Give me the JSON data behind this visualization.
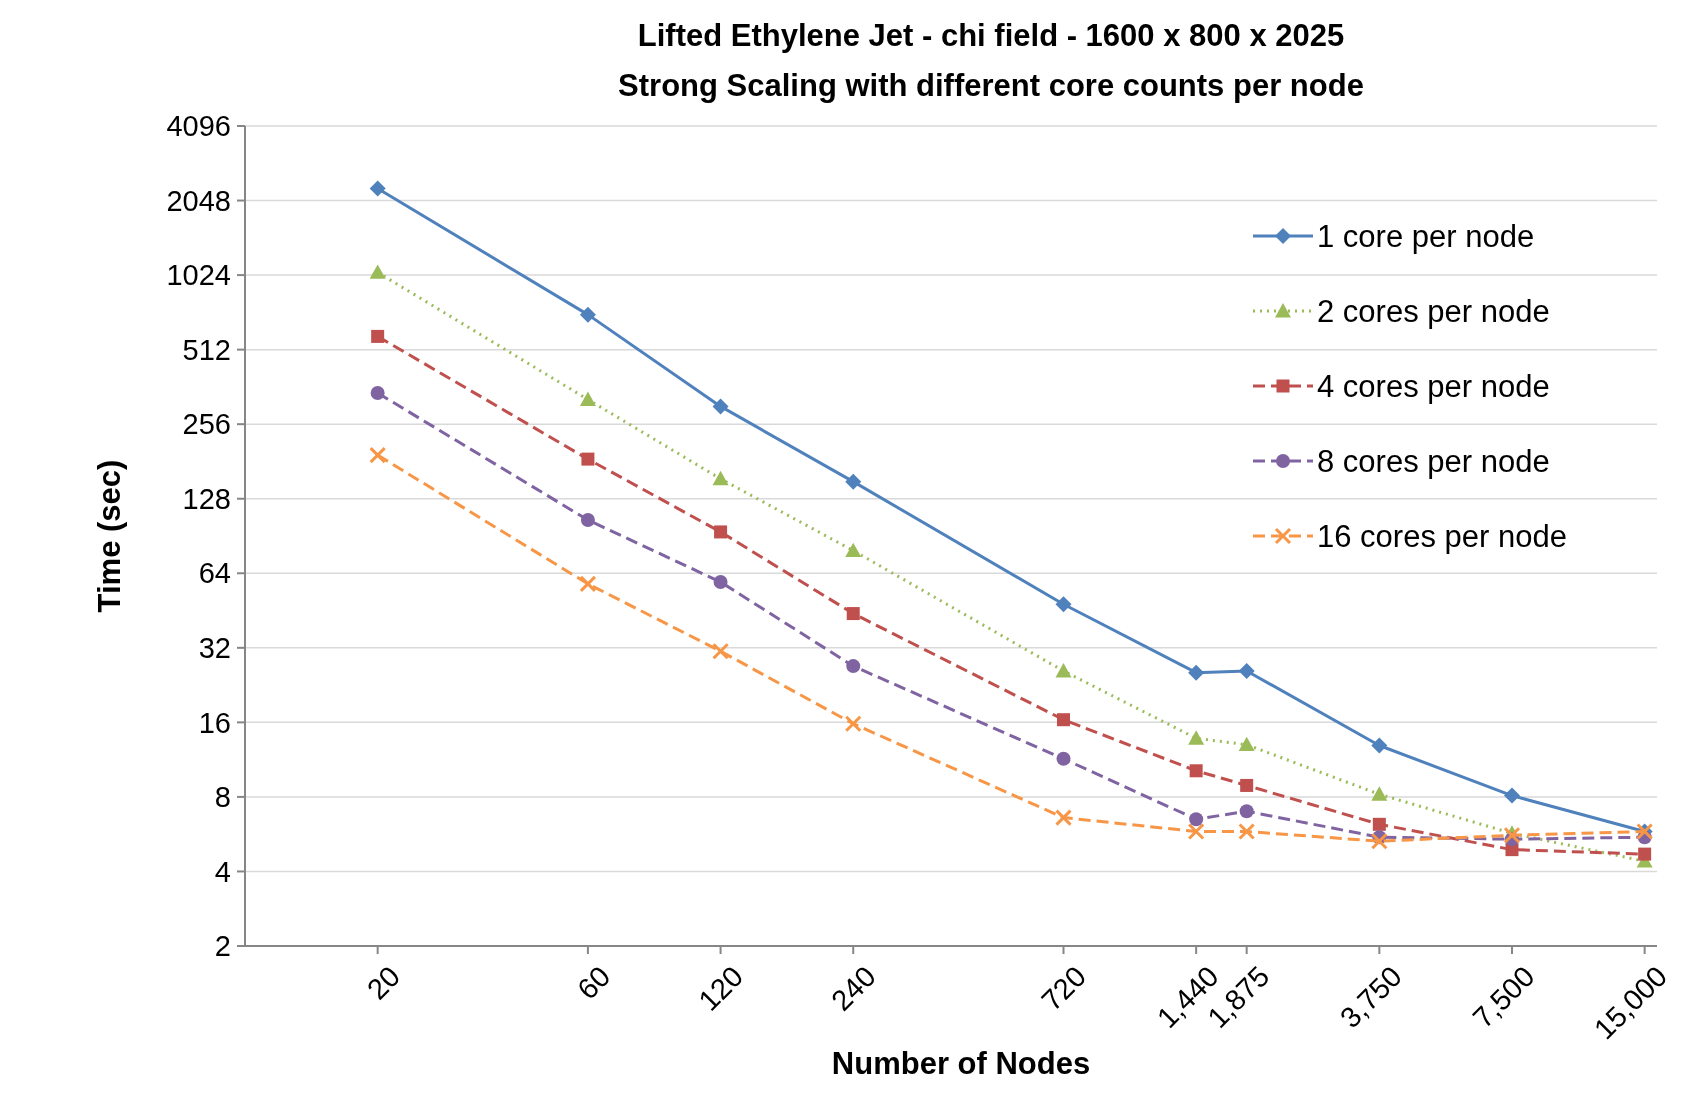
{
  "chart_data": {
    "type": "line",
    "title": "Lifted Ethylene Jet - chi field - 1600 x 800 x 2025",
    "subtitle": "Strong Scaling with different core counts per node",
    "xlabel": "Number of Nodes",
    "ylabel": "Time (sec)",
    "log": "xy",
    "grid": "y",
    "legend": "top right",
    "x": [
      20,
      60,
      120,
      240,
      720,
      1440,
      1875,
      3750,
      7500,
      15000
    ],
    "xlim": [
      10,
      16000
    ],
    "xticks": [
      20,
      60,
      120,
      240,
      720,
      {
        "value": 1440,
        "label": "1,440"
      },
      {
        "value": 1875,
        "label": "1,875"
      },
      {
        "value": 3750,
        "label": "3,750"
      },
      {
        "value": 7500,
        "label": "7,500"
      },
      {
        "value": 15000,
        "label": "15,000"
      }
    ],
    "ylim": [
      2,
      4096
    ],
    "yticks": [
      2,
      4,
      8,
      16,
      32,
      64,
      128,
      256,
      512,
      1024,
      2048,
      4096
    ],
    "series": [
      {
        "name": "1 core per node",
        "color": "#4f81bd",
        "marker": "diamond",
        "line_style": "solid",
        "values": [
          2290,
          709,
          302,
          150,
          48,
          25.4,
          25.8,
          12.9,
          8.1,
          5.8
        ]
      },
      {
        "name": "2 cores per node",
        "color": "#9bbb59",
        "marker": "triangle",
        "line_style": "dotted",
        "values": [
          1050,
          322,
          154,
          79,
          25.8,
          13.8,
          13,
          8.2,
          5.7,
          4.4
        ]
      },
      {
        "name": "4 cores per node",
        "color": "#c0504d",
        "marker": "square",
        "line_style": "dashed",
        "values": [
          579,
          185,
          94,
          44,
          16.4,
          10.2,
          8.9,
          6.2,
          4.9,
          4.7
        ]
      },
      {
        "name": "8 cores per node",
        "color": "#8064a2",
        "marker": "circle",
        "line_style": "dashed",
        "values": [
          342,
          105,
          59,
          27,
          11.4,
          6.5,
          7.0,
          5.5,
          5.4,
          5.5
        ]
      },
      {
        "name": "16 cores per node",
        "color": "#f79646",
        "marker": "cross",
        "line_style": "dashed",
        "values": [
          192,
          58,
          31,
          15.8,
          6.6,
          5.8,
          5.8,
          5.3,
          5.6,
          5.8
        ]
      }
    ]
  }
}
